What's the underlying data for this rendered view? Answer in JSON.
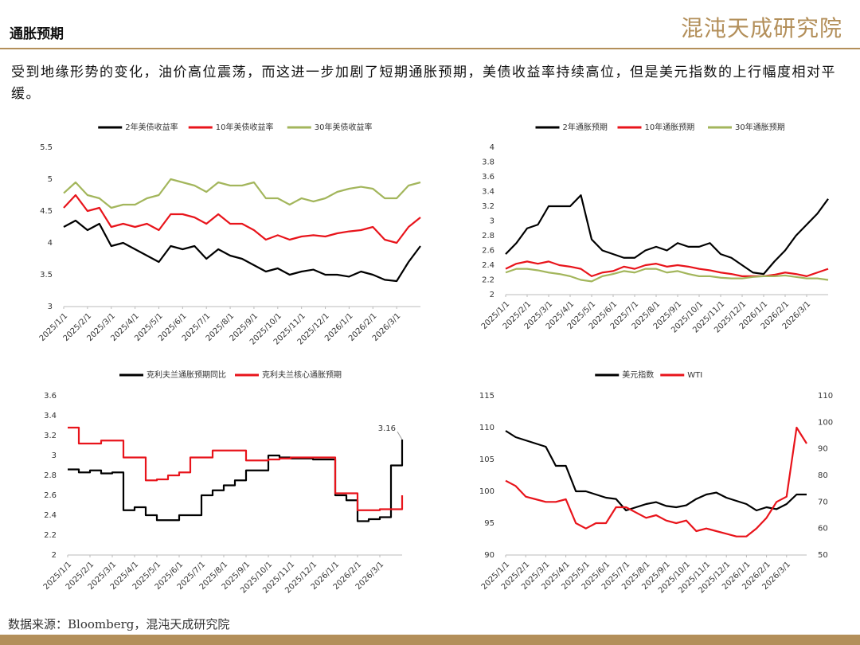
{
  "header": {
    "title": "通胀预期",
    "brand": "混沌天成研究院"
  },
  "body_text": "受到地缘形势的变化，油价高位震荡，而这进一步加剧了短期通胀预期，美债收益率持续高位，但是美元指数的上行幅度相对平缓。",
  "source": "数据来源：Bloomberg，混沌天成研究院",
  "chart_data": [
    {
      "type": "line",
      "legend": "top",
      "grid": false,
      "categories": [
        "2025/1/1",
        null,
        "2025/2/1",
        null,
        "2025/3/1",
        null,
        "2025/4/1",
        null,
        "2025/5/1",
        null,
        "2025/6/1",
        null,
        "2025/7/1",
        null,
        "2025/8/1",
        null,
        "2025/9/1",
        null,
        "2025/10/1",
        null,
        "2025/11/1",
        null,
        "2025/12/1",
        null,
        "2026/1/1",
        null,
        "2026/2/1",
        null,
        "2026/3/1",
        null,
        null
      ],
      "ylim": [
        3,
        5.5
      ],
      "yticks": [
        3,
        3.5,
        4,
        4.5,
        5,
        5.5
      ],
      "series": [
        {
          "name": "2年美债收益率",
          "color": "#000000",
          "values": [
            4.25,
            4.35,
            4.2,
            4.3,
            3.95,
            4.0,
            3.9,
            3.8,
            3.7,
            3.95,
            3.9,
            3.95,
            3.75,
            3.9,
            3.8,
            3.75,
            3.65,
            3.55,
            3.6,
            3.5,
            3.55,
            3.58,
            3.5,
            3.5,
            3.47,
            3.55,
            3.5,
            3.42,
            3.4,
            3.7,
            3.95
          ]
        },
        {
          "name": "10年美债收益率",
          "color": "#e8141b",
          "values": [
            4.55,
            4.75,
            4.5,
            4.55,
            4.25,
            4.3,
            4.25,
            4.3,
            4.2,
            4.45,
            4.45,
            4.4,
            4.3,
            4.45,
            4.3,
            4.3,
            4.2,
            4.05,
            4.12,
            4.05,
            4.1,
            4.12,
            4.1,
            4.15,
            4.18,
            4.2,
            4.25,
            4.05,
            4.0,
            4.25,
            4.4
          ]
        },
        {
          "name": "30年美债收益率",
          "color": "#a3b65c",
          "values": [
            4.78,
            4.95,
            4.75,
            4.7,
            4.55,
            4.6,
            4.6,
            4.7,
            4.75,
            5.0,
            4.95,
            4.9,
            4.8,
            4.95,
            4.9,
            4.9,
            4.95,
            4.7,
            4.7,
            4.6,
            4.7,
            4.65,
            4.7,
            4.8,
            4.85,
            4.88,
            4.85,
            4.7,
            4.7,
            4.9,
            4.95
          ]
        }
      ]
    },
    {
      "type": "line",
      "legend": "top",
      "grid": false,
      "categories": [
        "2025/1/1",
        null,
        "2025/2/1",
        null,
        "2025/3/1",
        null,
        "2025/4/1",
        null,
        "2025/5/1",
        null,
        "2025/6/1",
        null,
        "2025/7/1",
        null,
        "2025/8/1",
        null,
        "2025/9/1",
        null,
        "2025/10/1",
        null,
        "2025/11/1",
        null,
        "2025/12/1",
        null,
        "2026/1/1",
        null,
        "2026/2/1",
        null,
        "2026/3/1",
        null,
        null
      ],
      "ylim": [
        2,
        4
      ],
      "yticks": [
        2,
        2.2,
        2.4,
        2.6,
        2.8,
        3,
        3.2,
        3.4,
        3.6,
        3.8,
        4
      ],
      "series": [
        {
          "name": "2年通胀预期",
          "color": "#000000",
          "values": [
            2.55,
            2.7,
            2.9,
            2.95,
            3.2,
            3.2,
            3.2,
            3.35,
            2.75,
            2.6,
            2.55,
            2.5,
            2.5,
            2.6,
            2.65,
            2.6,
            2.7,
            2.65,
            2.65,
            2.7,
            2.55,
            2.5,
            2.4,
            2.3,
            2.28,
            2.45,
            2.6,
            2.8,
            2.95,
            3.1,
            3.3
          ]
        },
        {
          "name": "10年通胀预期",
          "color": "#e8141b",
          "values": [
            2.35,
            2.42,
            2.45,
            2.42,
            2.45,
            2.4,
            2.38,
            2.35,
            2.25,
            2.3,
            2.32,
            2.38,
            2.35,
            2.4,
            2.42,
            2.38,
            2.4,
            2.38,
            2.35,
            2.33,
            2.3,
            2.28,
            2.25,
            2.25,
            2.25,
            2.27,
            2.3,
            2.28,
            2.25,
            2.3,
            2.35
          ]
        },
        {
          "name": "30年通胀预期",
          "color": "#a3b65c",
          "values": [
            2.3,
            2.35,
            2.35,
            2.33,
            2.3,
            2.28,
            2.25,
            2.2,
            2.18,
            2.25,
            2.28,
            2.32,
            2.3,
            2.35,
            2.35,
            2.3,
            2.32,
            2.28,
            2.25,
            2.25,
            2.23,
            2.22,
            2.22,
            2.24,
            2.25,
            2.25,
            2.26,
            2.24,
            2.22,
            2.22,
            2.2
          ]
        }
      ]
    },
    {
      "type": "line",
      "step": true,
      "legend": "top",
      "grid": false,
      "categories": [
        "2025/1/1",
        null,
        "2025/2/1",
        null,
        "2025/3/1",
        null,
        "2025/4/1",
        null,
        "2025/5/1",
        null,
        "2025/6/1",
        null,
        "2025/7/1",
        null,
        "2025/8/1",
        null,
        "2025/9/1",
        null,
        "2025/10/1",
        null,
        "2025/11/1",
        null,
        "2025/12/1",
        null,
        "2026/1/1",
        null,
        "2026/2/1",
        null,
        "2026/3/1",
        null,
        null
      ],
      "ylim": [
        2,
        3.6
      ],
      "yticks": [
        2,
        2.2,
        2.4,
        2.6,
        2.8,
        3,
        3.2,
        3.4,
        3.6
      ],
      "labeled_point": {
        "series": 0,
        "index": 30
      },
      "series": [
        {
          "name": "克利夫兰通胀预期同比",
          "color": "#000000",
          "values": [
            2.86,
            2.83,
            2.85,
            2.82,
            2.83,
            2.45,
            2.48,
            2.4,
            2.35,
            2.35,
            2.4,
            2.4,
            2.6,
            2.65,
            2.7,
            2.75,
            2.85,
            2.85,
            3.0,
            2.98,
            2.97,
            2.97,
            2.96,
            2.96,
            2.6,
            2.55,
            2.34,
            2.36,
            2.38,
            2.9,
            3.16
          ]
        },
        {
          "name": "克利夫兰核心通胀预期",
          "color": "#e8141b",
          "values": [
            3.28,
            3.12,
            3.12,
            3.15,
            3.15,
            2.98,
            2.98,
            2.75,
            2.76,
            2.8,
            2.83,
            2.98,
            2.98,
            3.05,
            3.05,
            3.05,
            2.95,
            2.95,
            2.96,
            2.97,
            2.98,
            2.98,
            2.98,
            2.98,
            2.62,
            2.62,
            2.45,
            2.45,
            2.46,
            2.46,
            2.6
          ]
        }
      ]
    },
    {
      "type": "line",
      "legend": "top",
      "grid": false,
      "categories": [
        "2025/1/1",
        null,
        "2025/2/1",
        null,
        "2025/3/1",
        null,
        "2025/4/1",
        null,
        "2025/5/1",
        null,
        "2025/6/1",
        null,
        "2025/7/1",
        null,
        "2025/8/1",
        null,
        "2025/9/1",
        null,
        "2025/10/1",
        null,
        "2025/11/1",
        null,
        "2025/12/1",
        null,
        "2026/1/1",
        null,
        "2026/2/1",
        null,
        "2026/3/1",
        null,
        null
      ],
      "ylim": [
        90,
        115
      ],
      "yticks": [
        90,
        95,
        100,
        105,
        110,
        115
      ],
      "y2lim": [
        50,
        110
      ],
      "y2ticks": [
        50,
        60,
        70,
        80,
        90,
        100,
        110
      ],
      "series": [
        {
          "name": "美元指数",
          "color": "#000000",
          "values": [
            109.5,
            108.5,
            108,
            107.5,
            107,
            104,
            104,
            100,
            100,
            99.5,
            99,
            98.8,
            97,
            97.5,
            98,
            98.3,
            97.7,
            97.5,
            97.8,
            98.8,
            99.5,
            99.8,
            99,
            98.5,
            98,
            97,
            97.5,
            97.2,
            98,
            99.5,
            99.5
          ]
        },
        {
          "name": "WTI",
          "color": "#e8141b",
          "axis": "y2",
          "values": [
            78,
            76,
            72,
            71,
            70,
            70,
            71,
            62,
            60,
            62,
            62,
            68,
            68,
            66,
            64,
            65,
            63,
            62,
            63,
            59,
            60,
            59,
            58,
            57,
            57,
            60,
            64,
            70,
            72,
            98,
            92
          ]
        }
      ]
    }
  ]
}
